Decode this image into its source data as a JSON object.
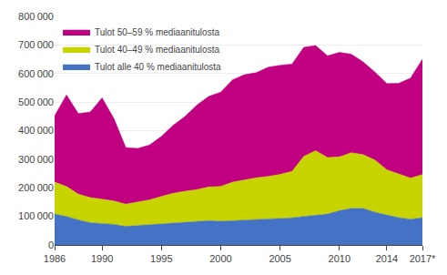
{
  "chart_data": {
    "type": "area",
    "stacked": true,
    "x": [
      1986,
      1987,
      1988,
      1989,
      1990,
      1991,
      1992,
      1993,
      1994,
      1995,
      1996,
      1997,
      1998,
      1999,
      2000,
      2001,
      2002,
      2003,
      2004,
      2005,
      2006,
      2007,
      2008,
      2009,
      2010,
      2011,
      2012,
      2013,
      2014,
      2015,
      2016,
      2017
    ],
    "series": [
      {
        "name": "Tulot alle 40 % mediaanitulosta",
        "color": "#4472c4",
        "values": [
          108000,
          100000,
          88000,
          78000,
          75000,
          72000,
          65000,
          68000,
          70000,
          75000,
          78000,
          80000,
          82000,
          85000,
          83000,
          85000,
          88000,
          90000,
          90000,
          92000,
          95000,
          100000,
          105000,
          108000,
          120000,
          128000,
          128000,
          115000,
          105000,
          96000,
          90000,
          96000
        ]
      },
      {
        "name": "Tulot 40–49 % mediaanitulosta",
        "color": "#c8d400",
        "values": [
          112000,
          105000,
          90000,
          88000,
          85000,
          82000,
          78000,
          82000,
          88000,
          95000,
          103000,
          108000,
          112000,
          118000,
          122000,
          135000,
          140000,
          145000,
          150000,
          155000,
          162000,
          210000,
          225000,
          198000,
          188000,
          195000,
          188000,
          182000,
          158000,
          152000,
          144000,
          150000
        ]
      },
      {
        "name": "Tulot 50–59 % mediaanitulosta",
        "color": "#c00080",
        "values": [
          232000,
          320000,
          282000,
          299000,
          355000,
          288000,
          198000,
          188000,
          192000,
          210000,
          238000,
          262000,
          296000,
          317000,
          330000,
          358000,
          368000,
          368000,
          382000,
          382000,
          376000,
          382000,
          368000,
          356000,
          366000,
          345000,
          325000,
          308000,
          302000,
          318000,
          350000,
          404000
        ]
      }
    ],
    "xlim": [
      1986,
      2017
    ],
    "xticks": [
      1986,
      1990,
      1995,
      2000,
      2005,
      2010,
      2014,
      {
        "value": 2017,
        "label": "2017*"
      }
    ],
    "ylim": [
      0,
      800000
    ],
    "yticks": [
      0,
      {
        "value": 100000,
        "label": "100 000"
      },
      {
        "value": 200000,
        "label": "200 000"
      },
      {
        "value": 300000,
        "label": "300 000"
      },
      {
        "value": 400000,
        "label": "400 000"
      },
      {
        "value": 500000,
        "label": "500 000"
      },
      {
        "value": 600000,
        "label": "600 000"
      },
      {
        "value": 700000,
        "label": "700 000"
      },
      {
        "value": 800000,
        "label": "800 000"
      }
    ],
    "grid": true,
    "legend": "upper left"
  }
}
